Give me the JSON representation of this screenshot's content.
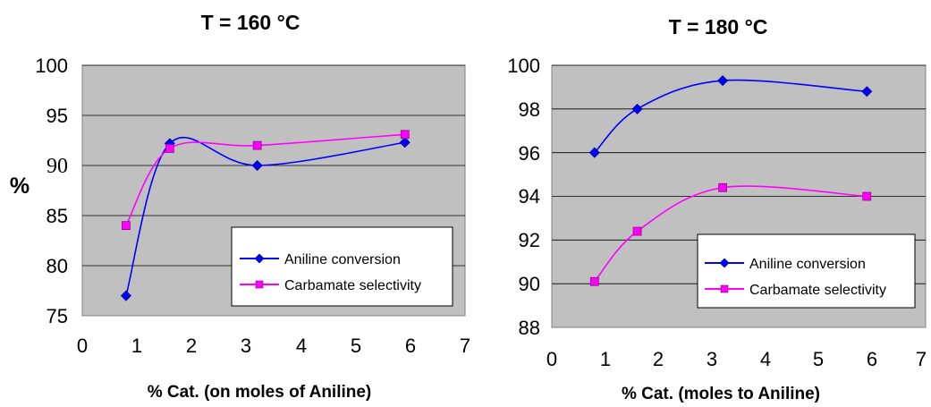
{
  "chart_data": [
    {
      "type": "line",
      "title": "T = 160 °C",
      "xlabel": "% Cat. (on moles of Aniline)",
      "ylabel": "%",
      "xlim": [
        0,
        7
      ],
      "ylim": [
        75,
        100
      ],
      "x_ticks": [
        "0",
        "1",
        "2",
        "3",
        "4",
        "5",
        "6",
        "7"
      ],
      "y_ticks": [
        "100",
        "95",
        "90",
        "85",
        "80",
        "75"
      ],
      "grid": true,
      "legend_position": "lower-right",
      "series": [
        {
          "name": "Aniline conversion",
          "color": "#0000ff",
          "marker": "diamond",
          "x": [
            0.8,
            1.6,
            3.2,
            5.9
          ],
          "y": [
            77.0,
            92.2,
            90.0,
            92.3
          ]
        },
        {
          "name": "Carbamate selectivity",
          "color": "#ff00ff",
          "marker": "square",
          "x": [
            0.8,
            1.6,
            3.2,
            5.9
          ],
          "y": [
            84.0,
            91.7,
            92.0,
            93.1
          ]
        }
      ]
    },
    {
      "type": "line",
      "title": "T = 180 °C",
      "xlabel": "% Cat. (moles to Aniline)",
      "ylabel": "",
      "xlim": [
        0,
        7
      ],
      "ylim": [
        88,
        100
      ],
      "x_ticks": [
        "0",
        "1",
        "2",
        "3",
        "4",
        "5",
        "6",
        "7"
      ],
      "y_ticks": [
        "100",
        "98",
        "96",
        "94",
        "92",
        "90",
        "88"
      ],
      "grid": true,
      "legend_position": "lower-right",
      "series": [
        {
          "name": "Aniline conversion",
          "color": "#0000ff",
          "marker": "diamond",
          "x": [
            0.8,
            1.6,
            3.2,
            5.9
          ],
          "y": [
            96.0,
            98.0,
            99.3,
            98.8
          ]
        },
        {
          "name": "Carbamate selectivity",
          "color": "#ff00ff",
          "marker": "square",
          "x": [
            0.8,
            1.6,
            3.2,
            5.9
          ],
          "y": [
            90.1,
            92.4,
            94.4,
            94.0
          ]
        }
      ]
    }
  ]
}
